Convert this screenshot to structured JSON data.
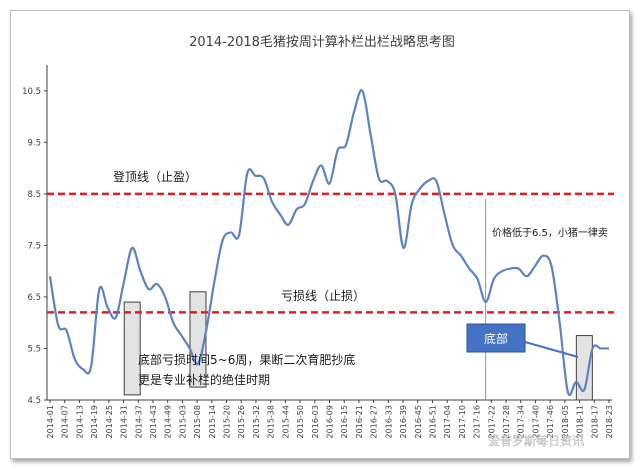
{
  "chart_data": {
    "type": "line",
    "title": "2014-2018毛猪按周计算补栏出栏战略思考图",
    "ylim": [
      4.5,
      11.0
    ],
    "yticks": [
      "4.5",
      "5.5",
      "6.5",
      "7.5",
      "8.5",
      "9.5",
      "10.5"
    ],
    "grid": false,
    "x_labels": [
      "2014-01",
      "2014-07",
      "2014-13",
      "2014-19",
      "2014-25",
      "2014-31",
      "2014-37",
      "2014-43",
      "2014-49",
      "2015-03",
      "2015-08",
      "2015-14",
      "2015-20",
      "2015-26",
      "2015-32",
      "2015-38",
      "2015-44",
      "2015-50",
      "2016-03",
      "2016-09",
      "2016-15",
      "2016-21",
      "2016-27",
      "2016-33",
      "2016-39",
      "2016-45",
      "2016-51",
      "2017-04",
      "2017-10",
      "2017-16",
      "2017-22",
      "2017-28",
      "2017-34",
      "2017-40",
      "2017-46",
      "2018-05",
      "2018-11",
      "2018-17",
      "2018-23"
    ],
    "series": [
      {
        "values": [
          6.9,
          5.95,
          5.85,
          5.3,
          5.1,
          5.15,
          6.65,
          6.3,
          6.1,
          6.8,
          7.45,
          7.0,
          6.65,
          6.75,
          6.5,
          6.0,
          5.75,
          5.5,
          5.2,
          5.85,
          6.8,
          7.6,
          7.75,
          7.7,
          8.9,
          8.85,
          8.8,
          8.35,
          8.1,
          7.9,
          8.2,
          8.3,
          8.75,
          9.05,
          8.7,
          9.35,
          9.45,
          10.1,
          10.5,
          9.65,
          8.8,
          8.75,
          8.5,
          7.45,
          8.3,
          8.6,
          8.75,
          8.75,
          8.1,
          7.5,
          7.3,
          7.05,
          6.85,
          6.4,
          6.85,
          7.0,
          7.05,
          7.05,
          6.9,
          7.1,
          7.3,
          7.1,
          6.0,
          4.65,
          4.85,
          4.7,
          5.5,
          5.5,
          5.5
        ]
      }
    ],
    "reference_lines": [
      {
        "label": "登顶线（止盈）",
        "value": 8.5
      },
      {
        "label": "亏损线（止损）",
        "value": 6.2
      }
    ],
    "vertical_marker_x_index": 53,
    "annotations": {
      "bottom_note_line1": "底部亏损时间5~6周，果断二次育肥抄底",
      "bottom_note_line2": "更是专业补栏的绝佳时期",
      "price_note": "价格低于6.5，小猪一律卖",
      "badge": "底部"
    },
    "highlight_box_at_x_index": [
      10,
      18,
      65
    ]
  },
  "colors": {
    "series": "#5b83c4",
    "reference": "#e02020",
    "badge_fill": "#4472c4",
    "box_fill": "#e0e0e0",
    "axis": "#404040"
  },
  "watermark": "爱普罗斯每日资讯"
}
